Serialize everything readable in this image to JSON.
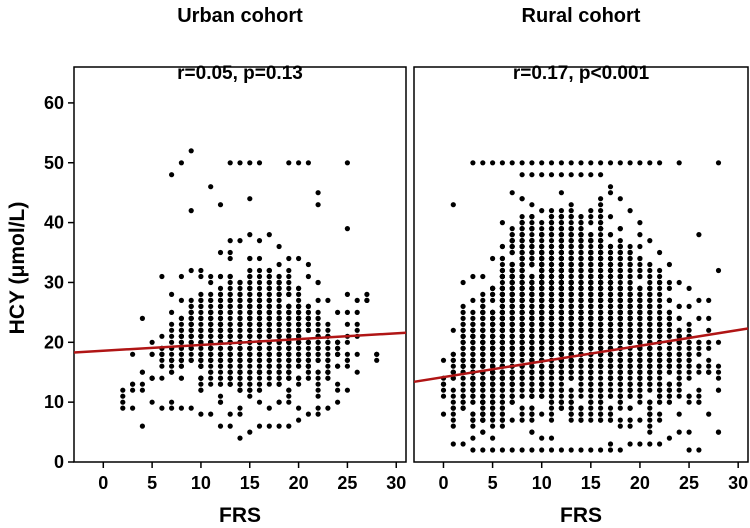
{
  "figure": {
    "ylabel": "HCY (μmol/L)",
    "xlabel": "FRS"
  },
  "chart_data": [
    {
      "type": "scatter",
      "title": "Urban cohort",
      "annotation": "r=0.05,  p=0.13",
      "xlabel": "FRS",
      "ylabel": "HCY (μmol/L)",
      "xlim": [
        -3,
        31
      ],
      "ylim": [
        0,
        66
      ],
      "xticks": [
        "0",
        "5",
        "10",
        "15",
        "20",
        "25",
        "30"
      ],
      "yticks": [
        "0",
        "10",
        "20",
        "30",
        "40",
        "50",
        "60"
      ],
      "grid": false,
      "point_color": "#000000",
      "fit_color": "#b01515",
      "fit_line": {
        "x": [
          -3,
          31
        ],
        "y": [
          18.3,
          21.6
        ]
      },
      "seed": 11,
      "bands": [
        {
          "x": 2,
          "n": 2,
          "ymin": 9,
          "ymax": 12
        },
        {
          "x": 3,
          "n": 3,
          "ymin": 9,
          "ymax": 18
        },
        {
          "x": 4,
          "n": 4,
          "ymin": 6,
          "ymax": 24
        },
        {
          "x": 5,
          "n": 6,
          "ymin": 10,
          "ymax": 20
        },
        {
          "x": 6,
          "n": 10,
          "ymin": 9,
          "ymax": 31
        },
        {
          "x": 7,
          "n": 16,
          "ymin": 9,
          "ymax": 28
        },
        {
          "x": 8,
          "n": 24,
          "ymin": 9,
          "ymax": 31
        },
        {
          "x": 9,
          "n": 34,
          "ymin": 9,
          "ymax": 32
        },
        {
          "x": 10,
          "n": 48,
          "ymin": 8,
          "ymax": 31
        },
        {
          "x": 11,
          "n": 60,
          "ymin": 8,
          "ymax": 31
        },
        {
          "x": 12,
          "n": 70,
          "ymin": 6,
          "ymax": 35
        },
        {
          "x": 13,
          "n": 78,
          "ymin": 6,
          "ymax": 37
        },
        {
          "x": 14,
          "n": 80,
          "ymin": 4,
          "ymax": 37
        },
        {
          "x": 15,
          "n": 82,
          "ymin": 5,
          "ymax": 38
        },
        {
          "x": 16,
          "n": 80,
          "ymin": 6,
          "ymax": 37
        },
        {
          "x": 17,
          "n": 76,
          "ymin": 6,
          "ymax": 38
        },
        {
          "x": 18,
          "n": 70,
          "ymin": 6,
          "ymax": 36
        },
        {
          "x": 19,
          "n": 60,
          "ymin": 6,
          "ymax": 34
        },
        {
          "x": 20,
          "n": 50,
          "ymin": 7,
          "ymax": 34
        },
        {
          "x": 21,
          "n": 40,
          "ymin": 8,
          "ymax": 33
        },
        {
          "x": 22,
          "n": 30,
          "ymin": 8,
          "ymax": 30
        },
        {
          "x": 23,
          "n": 20,
          "ymin": 9,
          "ymax": 27
        },
        {
          "x": 24,
          "n": 14,
          "ymin": 10,
          "ymax": 25
        },
        {
          "x": 25,
          "n": 8,
          "ymin": 12,
          "ymax": 28
        },
        {
          "x": 26,
          "n": 4,
          "ymin": 15,
          "ymax": 25
        },
        {
          "x": 27,
          "n": 1,
          "ymin": 27,
          "ymax": 28
        },
        {
          "x": 28,
          "n": 1,
          "ymin": 17,
          "ymax": 18
        }
      ],
      "extra_points": [
        [
          9,
          52
        ],
        [
          8,
          50
        ],
        [
          7,
          48
        ],
        [
          11,
          46
        ],
        [
          13,
          50
        ],
        [
          14,
          50
        ],
        [
          15,
          50
        ],
        [
          16,
          50
        ],
        [
          19,
          50
        ],
        [
          20,
          50
        ],
        [
          21,
          50
        ],
        [
          25,
          50
        ],
        [
          12,
          43
        ],
        [
          9,
          42
        ],
        [
          15,
          44
        ],
        [
          22,
          43
        ],
        [
          22,
          45
        ],
        [
          25,
          39
        ],
        [
          26,
          27
        ],
        [
          10,
          32
        ]
      ]
    },
    {
      "type": "scatter",
      "title": "Rural cohort",
      "annotation": "r=0.17,  p<0.001",
      "xlabel": "FRS",
      "ylabel": "",
      "xlim": [
        -3,
        31
      ],
      "ylim": [
        0,
        66
      ],
      "xticks": [
        "0",
        "5",
        "10",
        "15",
        "20",
        "25",
        "30"
      ],
      "yticks": [],
      "grid": false,
      "point_color": "#000000",
      "fit_color": "#b01515",
      "fit_line": {
        "x": [
          -3,
          31
        ],
        "y": [
          13.4,
          22.3
        ]
      },
      "seed": 29,
      "bands": [
        {
          "x": 0,
          "n": 6,
          "ymin": 8,
          "ymax": 17
        },
        {
          "x": 1,
          "n": 18,
          "ymin": 3,
          "ymax": 22
        },
        {
          "x": 2,
          "n": 40,
          "ymin": 3,
          "ymax": 30
        },
        {
          "x": 3,
          "n": 70,
          "ymin": 2,
          "ymax": 31
        },
        {
          "x": 4,
          "n": 100,
          "ymin": 2,
          "ymax": 31
        },
        {
          "x": 5,
          "n": 130,
          "ymin": 2,
          "ymax": 34
        },
        {
          "x": 6,
          "n": 160,
          "ymin": 2,
          "ymax": 40
        },
        {
          "x": 7,
          "n": 180,
          "ymin": 2,
          "ymax": 45
        },
        {
          "x": 8,
          "n": 200,
          "ymin": 2,
          "ymax": 48
        },
        {
          "x": 9,
          "n": 210,
          "ymin": 2,
          "ymax": 48
        },
        {
          "x": 10,
          "n": 220,
          "ymin": 2,
          "ymax": 48
        },
        {
          "x": 11,
          "n": 225,
          "ymin": 2,
          "ymax": 48
        },
        {
          "x": 12,
          "n": 225,
          "ymin": 2,
          "ymax": 48
        },
        {
          "x": 13,
          "n": 220,
          "ymin": 2,
          "ymax": 48
        },
        {
          "x": 14,
          "n": 215,
          "ymin": 2,
          "ymax": 48
        },
        {
          "x": 15,
          "n": 205,
          "ymin": 2,
          "ymax": 48
        },
        {
          "x": 16,
          "n": 195,
          "ymin": 2,
          "ymax": 48
        },
        {
          "x": 17,
          "n": 180,
          "ymin": 2,
          "ymax": 46
        },
        {
          "x": 18,
          "n": 165,
          "ymin": 2,
          "ymax": 44
        },
        {
          "x": 19,
          "n": 145,
          "ymin": 3,
          "ymax": 42
        },
        {
          "x": 20,
          "n": 120,
          "ymin": 3,
          "ymax": 40
        },
        {
          "x": 21,
          "n": 95,
          "ymin": 3,
          "ymax": 37
        },
        {
          "x": 22,
          "n": 70,
          "ymin": 3,
          "ymax": 35
        },
        {
          "x": 23,
          "n": 50,
          "ymin": 4,
          "ymax": 33
        },
        {
          "x": 24,
          "n": 34,
          "ymin": 5,
          "ymax": 30
        },
        {
          "x": 25,
          "n": 22,
          "ymin": 5,
          "ymax": 29
        },
        {
          "x": 26,
          "n": 12,
          "ymin": 2,
          "ymax": 27
        },
        {
          "x": 27,
          "n": 8,
          "ymin": 8,
          "ymax": 24
        },
        {
          "x": 28,
          "n": 5,
          "ymin": 5,
          "ymax": 20
        }
      ],
      "extra_points": [
        [
          1,
          43
        ],
        [
          3,
          50
        ],
        [
          4,
          50
        ],
        [
          5,
          50
        ],
        [
          6,
          50
        ],
        [
          7,
          50
        ],
        [
          8,
          50
        ],
        [
          9,
          50
        ],
        [
          10,
          50
        ],
        [
          11,
          50
        ],
        [
          12,
          50
        ],
        [
          13,
          50
        ],
        [
          14,
          50
        ],
        [
          15,
          50
        ],
        [
          16,
          50
        ],
        [
          17,
          50
        ],
        [
          18,
          50
        ],
        [
          19,
          50
        ],
        [
          20,
          50
        ],
        [
          21,
          50
        ],
        [
          22,
          50
        ],
        [
          24,
          50
        ],
        [
          28,
          50
        ],
        [
          26,
          38
        ],
        [
          28,
          32
        ],
        [
          27,
          27
        ],
        [
          28,
          5
        ],
        [
          25,
          2
        ]
      ]
    }
  ]
}
